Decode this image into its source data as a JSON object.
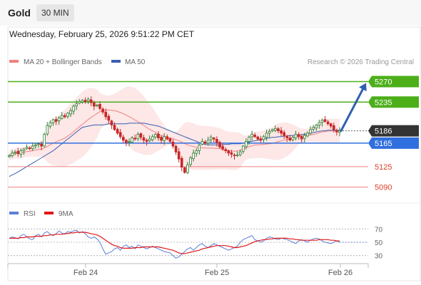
{
  "header": {
    "title": "Gold",
    "timeframe": "30 MIN"
  },
  "timestamp": "Wednesday, February 25, 2026 9:51:22 PM CET",
  "source": "Research © 2026 Trading Central",
  "colors": {
    "up": "#2e7d32",
    "down": "#c62828",
    "ma20": "#f08080",
    "ma50": "#3a5fb0",
    "resistance": "#4caf1a",
    "support": "#f08080",
    "pivot": "#2f6fdf",
    "current": "#333333",
    "rsi": "#5b7fd6",
    "ma9": "#e01818"
  },
  "chart_data": [
    {
      "type": "candlestick",
      "x_ticks": [
        "Feb 24",
        "Feb 25",
        "Feb 26"
      ],
      "legend": [
        {
          "name": "MA 20 + Bollinger Bands",
          "color": "#f08080"
        },
        {
          "name": "MA 50",
          "color": "#3a5fb0"
        }
      ],
      "ylim": [
        5075,
        5290
      ],
      "levels": [
        {
          "value": 5270,
          "label": "5270",
          "kind": "resistance"
        },
        {
          "value": 5235,
          "label": "5235",
          "kind": "resistance"
        },
        {
          "value": 5186,
          "label": "5186",
          "kind": "current"
        },
        {
          "value": 5165,
          "label": "5165",
          "kind": "pivot"
        },
        {
          "value": 5125,
          "label": "5125",
          "kind": "support"
        },
        {
          "value": 5090,
          "label": "5090",
          "kind": "support"
        }
      ],
      "closes": [
        5144,
        5148,
        5150,
        5147,
        5152,
        5155,
        5158,
        5156,
        5160,
        5162,
        5164,
        5160,
        5180,
        5195,
        5200,
        5205,
        5202,
        5208,
        5212,
        5210,
        5216,
        5220,
        5228,
        5232,
        5236,
        5238,
        5236,
        5240,
        5234,
        5228,
        5230,
        5224,
        5218,
        5210,
        5204,
        5196,
        5188,
        5182,
        5176,
        5170,
        5166,
        5168,
        5174,
        5172,
        5180,
        5175,
        5170,
        5168,
        5172,
        5176,
        5180,
        5174,
        5170,
        5176,
        5172,
        5168,
        5160,
        5150,
        5138,
        5124,
        5115,
        5128,
        5140,
        5148,
        5152,
        5162,
        5168,
        5165,
        5170,
        5175,
        5172,
        5166,
        5158,
        5155,
        5152,
        5148,
        5146,
        5144,
        5145,
        5150,
        5160,
        5168,
        5175,
        5180,
        5176,
        5172,
        5170,
        5176,
        5182,
        5185,
        5188,
        5190,
        5186,
        5182,
        5178,
        5174,
        5170,
        5175,
        5180,
        5176,
        5172,
        5178,
        5182,
        5188,
        5192,
        5196,
        5200,
        5204,
        5202,
        5198,
        5194,
        5188,
        5184,
        5186
      ],
      "ma50": [
        5108,
        5111,
        5113,
        5116,
        5119,
        5122,
        5125,
        5128,
        5131,
        5134,
        5137,
        5140,
        5143,
        5146,
        5149,
        5152,
        5156,
        5160,
        5164,
        5168,
        5172,
        5176,
        5180,
        5184,
        5188,
        5192,
        5193,
        5194,
        5195,
        5196,
        5196,
        5196,
        5196,
        5197,
        5198,
        5198,
        5198,
        5198,
        5198,
        5198,
        5198,
        5199,
        5199,
        5199,
        5199,
        5199,
        5199,
        5198,
        5197,
        5196,
        5195,
        5194,
        5192,
        5190,
        5188,
        5186,
        5184,
        5182,
        5180,
        5178,
        5176,
        5174,
        5172,
        5170,
        5168,
        5166,
        5164,
        5163,
        5162,
        5162,
        5162,
        5162,
        5162,
        5162,
        5163,
        5163,
        5164,
        5164,
        5164,
        5164,
        5165,
        5166,
        5167,
        5168,
        5169,
        5170,
        5171,
        5172,
        5173,
        5174,
        5175,
        5175,
        5176,
        5176,
        5177,
        5177,
        5178,
        5178,
        5179,
        5179,
        5180,
        5180,
        5181,
        5182,
        5183,
        5184,
        5185,
        5186,
        5186,
        5187,
        5187,
        5187,
        5187,
        5187
      ]
    },
    {
      "type": "line",
      "legend": [
        {
          "name": "RSI",
          "color": "#5b7fd6"
        },
        {
          "name": "9MA",
          "color": "#e01818"
        }
      ],
      "y_ticks": [
        70,
        50,
        30
      ],
      "ylim": [
        20,
        80
      ],
      "rsi": [
        56,
        58,
        57,
        55,
        60,
        62,
        58,
        55,
        54,
        60,
        62,
        58,
        64,
        66,
        62,
        60,
        63,
        67,
        64,
        62,
        66,
        65,
        67,
        68,
        64,
        66,
        63,
        58,
        56,
        58,
        55,
        50,
        40,
        32,
        34,
        36,
        40,
        42,
        38,
        44,
        46,
        42,
        44,
        40,
        46,
        44,
        42,
        40,
        42,
        44,
        42,
        40,
        38,
        36,
        35,
        34,
        30,
        26,
        28,
        32,
        36,
        40,
        42,
        38,
        42,
        46,
        48,
        44,
        42,
        45,
        48,
        46,
        44,
        42,
        40,
        38,
        40,
        42,
        44,
        50,
        54,
        56,
        58,
        60,
        54,
        52,
        50,
        52,
        56,
        58,
        57,
        55,
        54,
        56,
        55,
        54,
        52,
        50,
        48,
        52,
        54,
        52,
        50,
        53,
        55,
        56,
        55,
        52,
        50,
        49,
        48,
        50,
        52,
        50
      ],
      "ma9": [
        56,
        56,
        56,
        56,
        57,
        57,
        58,
        58,
        58,
        59,
        59,
        59,
        60,
        60,
        61,
        61,
        62,
        62,
        62,
        63,
        63,
        64,
        64,
        65,
        65,
        65,
        65,
        64,
        63,
        62,
        61,
        59,
        56,
        53,
        50,
        47,
        45,
        44,
        42,
        41,
        41,
        41,
        41,
        42,
        42,
        42,
        43,
        43,
        43,
        43,
        43,
        43,
        42,
        41,
        40,
        39,
        38,
        36,
        34,
        33,
        33,
        34,
        35,
        36,
        37,
        38,
        40,
        41,
        42,
        43,
        44,
        45,
        45,
        45,
        45,
        44,
        43,
        42,
        42,
        43,
        44,
        45,
        47,
        49,
        51,
        52,
        53,
        54,
        54,
        55,
        55,
        56,
        56,
        56,
        56,
        56,
        55,
        55,
        54,
        54,
        53,
        53,
        53,
        53,
        53,
        53,
        54,
        54,
        54,
        54,
        53,
        53,
        52,
        52
      ]
    }
  ]
}
